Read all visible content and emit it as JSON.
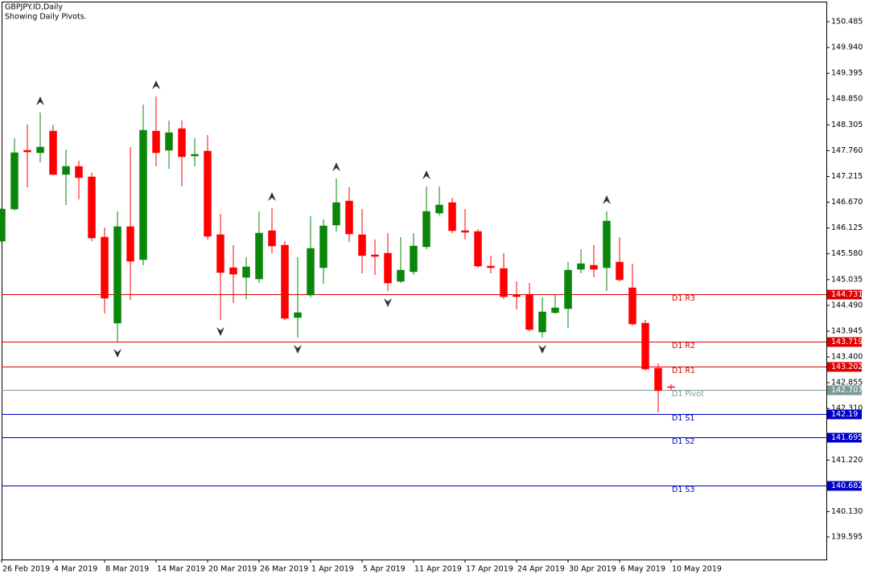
{
  "chart_data": {
    "type": "candlestick",
    "title": "GBPJPY.ID,Daily",
    "subtitle": "Showing Daily Pivots.",
    "categories": [
      "26 Feb 2019",
      null,
      null,
      null,
      "4 Mar 2019",
      null,
      null,
      null,
      "8 Mar 2019",
      null,
      null,
      null,
      "14 Mar 2019",
      null,
      null,
      null,
      "20 Mar 2019",
      null,
      null,
      null,
      "26 Mar 2019",
      null,
      null,
      null,
      "1 Apr 2019",
      null,
      null,
      null,
      "5 Apr 2019",
      null,
      null,
      null,
      "11 Apr 2019",
      null,
      null,
      null,
      "17 Apr 2019",
      null,
      null,
      null,
      "24 Apr 2019",
      null,
      null,
      null,
      "30 Apr 2019",
      null,
      null,
      null,
      "6 May 2019",
      null,
      null,
      null,
      "10 May 2019"
    ],
    "open": [
      145.847,
      146.526,
      147.767,
      147.716,
      148.174,
      147.257,
      147.427,
      147.206,
      145.932,
      144.114,
      146.153,
      145.456,
      148.174,
      147.767,
      148.225,
      147.648,
      147.75,
      145.983,
      145.286,
      145.082,
      145.048,
      146.068,
      145.762,
      144.233,
      144.708,
      145.286,
      146.187,
      146.696,
      145.983,
      145.558,
      145.592,
      144.997,
      145.201,
      145.728,
      146.441,
      146.662,
      146.068,
      146.051,
      145.32,
      145.269,
      144.708,
      144.725,
      143.927,
      144.335,
      144.42,
      145.252,
      145.337,
      145.286,
      145.405,
      144.861,
      144.114,
      143.162,
      142.772
    ],
    "high": [
      146.56,
      148.021,
      148.31,
      148.565,
      148.31,
      147.784,
      147.546,
      147.291,
      146.136,
      146.475,
      147.835,
      148.735,
      148.905,
      148.395,
      148.395,
      148.021,
      148.089,
      146.424,
      145.762,
      145.507,
      146.475,
      146.543,
      145.847,
      145.507,
      146.373,
      146.305,
      147.172,
      146.985,
      146.526,
      145.881,
      146.017,
      145.932,
      146.017,
      147.002,
      147.002,
      146.764,
      146.526,
      146.102,
      145.541,
      145.592,
      144.997,
      144.963,
      144.657,
      144.708,
      145.405,
      145.677,
      145.762,
      146.475,
      145.932,
      145.371,
      144.182,
      143.264,
      142.823
    ],
    "low": [
      145.813,
      146.492,
      146.985,
      147.512,
      147.24,
      146.611,
      146.73,
      145.847,
      144.318,
      143.723,
      144.606,
      145.337,
      147.427,
      147.376,
      147.002,
      147.427,
      145.881,
      144.182,
      144.539,
      144.623,
      144.963,
      145.592,
      144.182,
      143.808,
      144.657,
      144.946,
      146.051,
      145.83,
      145.167,
      145.133,
      144.793,
      144.963,
      145.133,
      145.677,
      146.39,
      146.017,
      145.881,
      145.286,
      145.167,
      144.623,
      144.403,
      143.944,
      143.808,
      144.318,
      144.012,
      145.167,
      145.082,
      144.793,
      144.997,
      144.063,
      143.111,
      142.228,
      142.687
    ],
    "close": [
      146.526,
      147.716,
      147.733,
      147.835,
      147.257,
      147.427,
      147.189,
      145.915,
      144.641,
      146.153,
      145.422,
      148.191,
      147.716,
      148.14,
      147.631,
      147.682,
      145.949,
      145.184,
      145.15,
      145.303,
      146.017,
      145.745,
      144.216,
      144.335,
      145.694,
      146.17,
      146.662,
      146.0,
      145.541,
      145.524,
      144.963,
      145.235,
      145.745,
      146.475,
      146.611,
      146.068,
      146.034,
      145.32,
      145.286,
      144.674,
      144.674,
      143.978,
      144.352,
      144.437,
      145.235,
      145.371,
      145.252,
      146.272,
      145.031,
      144.097,
      143.145,
      142.687,
      142.755
    ],
    "up_color": "#0a870a",
    "down_color": "#ff0000",
    "fractals_up": [
      3,
      12,
      21,
      26,
      33,
      47
    ],
    "fractals_down": [
      9,
      17,
      23,
      30,
      42
    ],
    "levels": [
      {
        "label": "D1 R3",
        "value": 144.731,
        "color": "#e00000"
      },
      {
        "label": "D1 R2",
        "value": 143.719,
        "color": "#e00000"
      },
      {
        "label": "D1 R1",
        "value": 143.202,
        "color": "#e00000"
      },
      {
        "label": "D1 Pivot",
        "value": 142.707,
        "color": "#7a9a9a"
      },
      {
        "label": "D1 S1",
        "value": 142.19,
        "color": "#0000c8"
      },
      {
        "label": "D1 S2",
        "value": 141.695,
        "color": "#0000c8"
      },
      {
        "label": "D1 S3",
        "value": 140.682,
        "color": "#0000c8"
      }
    ],
    "ylim": [
      139.119,
      150.91
    ],
    "yticks": [
      150.485,
      {
        "value": 149.94,
        "label": "149.940"
      },
      149.395,
      {
        "value": 148.85,
        "label": "148.850"
      },
      148.305,
      {
        "value": 147.76,
        "label": "147.760"
      },
      147.215,
      {
        "value": 146.67,
        "label": "146.670"
      },
      146.125,
      {
        "value": 145.58,
        "label": "145.580"
      },
      145.035,
      {
        "value": 144.49,
        "label": "144.490"
      },
      143.945,
      {
        "value": 143.4,
        "label": "143.400"
      },
      142.855,
      {
        "value": 142.31,
        "label": "142.310"
      },
      {
        "value": 141.22,
        "label": "141.220"
      },
      {
        "value": 140.13,
        "label": "140.130"
      },
      139.595
    ]
  }
}
